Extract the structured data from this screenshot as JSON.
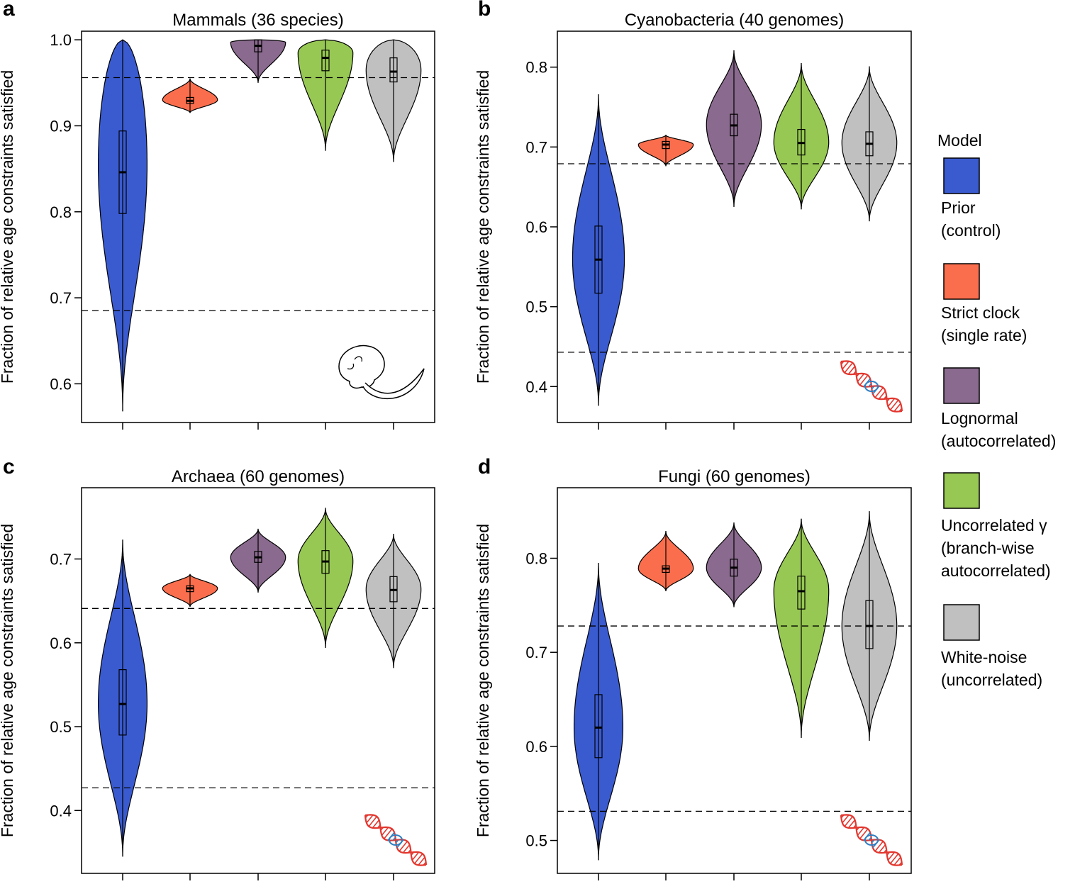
{
  "figure": {
    "y_axis_label": "Fraction of relative age constraints satisfied",
    "legend_title": "Model"
  },
  "legend": [
    {
      "line1": "Prior",
      "line2": "(control)",
      "color": "#3a5bd0"
    },
    {
      "line1": "Strict clock",
      "line2": "(single rate)",
      "color": "#fb6e4d"
    },
    {
      "line1": "Lognormal",
      "line2": "(autocorrelated)",
      "color": "#8a6a8e"
    },
    {
      "line1": "Uncorrelated γ",
      "line2": "(branch-wise",
      "line3": "autocorrelated)",
      "color": "#97c853"
    },
    {
      "line1": "White-noise",
      "line2": "(uncorrelated)",
      "color": "#c0c0c0"
    }
  ],
  "chart_data": [
    {
      "type": "violin",
      "panel": "a",
      "title": "Mammals (36 species)",
      "ylabel": "Fraction of relative age constraints satisfied",
      "ylim": [
        0.555,
        1.01
      ],
      "yticks": [
        0.6,
        0.7,
        0.8,
        0.9,
        1.0
      ],
      "ytick_labels": [
        "0.6",
        "0.7",
        "0.8",
        "0.9",
        "1.0"
      ],
      "hlines": [
        0.956,
        0.685
      ],
      "inset_icon": "skull-icon",
      "series": [
        {
          "name": "Prior (control)",
          "min": 0.568,
          "q1": 0.798,
          "median": 0.846,
          "q3": 0.894,
          "max": 1.0,
          "mode": 0.855,
          "width": 0.8
        },
        {
          "name": "Strict clock (single rate)",
          "min": 0.915,
          "q1": 0.926,
          "median": 0.929,
          "q3": 0.933,
          "max": 0.955,
          "mode": 0.93,
          "width": 0.9
        },
        {
          "name": "Lognormal (autocorrelated)",
          "min": 0.95,
          "q1": 0.986,
          "median": 0.993,
          "q3": 1.0,
          "max": 1.0,
          "mode": 0.997,
          "width": 0.9
        },
        {
          "name": "Uncorrelated γ (branch-wise autocorrelated)",
          "min": 0.871,
          "q1": 0.964,
          "median": 0.979,
          "q3": 0.988,
          "max": 1.0,
          "mode": 0.985,
          "width": 0.9
        },
        {
          "name": "White-noise (uncorrelated)",
          "min": 0.858,
          "q1": 0.951,
          "median": 0.963,
          "q3": 0.979,
          "max": 1.0,
          "mode": 0.965,
          "width": 0.9
        }
      ]
    },
    {
      "type": "violin",
      "panel": "b",
      "title": "Cyanobacteria (40 genomes)",
      "ylabel": "Fraction of relative age constraints satisfied",
      "ylim": [
        0.355,
        0.845
      ],
      "yticks": [
        0.4,
        0.5,
        0.6,
        0.7,
        0.8
      ],
      "ytick_labels": [
        "0.4",
        "0.5",
        "0.6",
        "0.7",
        "0.8"
      ],
      "hlines": [
        0.679,
        0.443
      ],
      "inset_icon": "dna-icon",
      "series": [
        {
          "name": "Prior (control)",
          "min": 0.376,
          "q1": 0.517,
          "median": 0.559,
          "q3": 0.601,
          "max": 0.766,
          "mode": 0.56,
          "width": 0.85
        },
        {
          "name": "Strict clock (single rate)",
          "min": 0.676,
          "q1": 0.698,
          "median": 0.703,
          "q3": 0.707,
          "max": 0.715,
          "mode": 0.703,
          "width": 0.9
        },
        {
          "name": "Lognormal (autocorrelated)",
          "min": 0.625,
          "q1": 0.714,
          "median": 0.727,
          "q3": 0.741,
          "max": 0.821,
          "mode": 0.728,
          "width": 0.9
        },
        {
          "name": "Uncorrelated γ (branch-wise autocorrelated)",
          "min": 0.622,
          "q1": 0.69,
          "median": 0.705,
          "q3": 0.722,
          "max": 0.805,
          "mode": 0.706,
          "width": 0.9
        },
        {
          "name": "White-noise (uncorrelated)",
          "min": 0.607,
          "q1": 0.689,
          "median": 0.704,
          "q3": 0.719,
          "max": 0.801,
          "mode": 0.705,
          "width": 0.9
        }
      ]
    },
    {
      "type": "violin",
      "panel": "c",
      "title": "Archaea (60 genomes)",
      "ylabel": "Fraction of relative age constraints satisfied",
      "ylim": [
        0.325,
        0.785
      ],
      "yticks": [
        0.4,
        0.5,
        0.6,
        0.7
      ],
      "ytick_labels": [
        "0.4",
        "0.5",
        "0.6",
        "0.7"
      ],
      "hlines": [
        0.641,
        0.427
      ],
      "inset_icon": "dna-icon",
      "series": [
        {
          "name": "Prior (control)",
          "min": 0.345,
          "q1": 0.49,
          "median": 0.527,
          "q3": 0.568,
          "max": 0.723,
          "mode": 0.528,
          "width": 0.8
        },
        {
          "name": "Strict clock (single rate)",
          "min": 0.643,
          "q1": 0.661,
          "median": 0.665,
          "q3": 0.668,
          "max": 0.682,
          "mode": 0.665,
          "width": 0.9
        },
        {
          "name": "Lognormal (autocorrelated)",
          "min": 0.66,
          "q1": 0.696,
          "median": 0.702,
          "q3": 0.709,
          "max": 0.736,
          "mode": 0.702,
          "width": 0.9
        },
        {
          "name": "Uncorrelated γ (branch-wise autocorrelated)",
          "min": 0.594,
          "q1": 0.683,
          "median": 0.697,
          "q3": 0.71,
          "max": 0.761,
          "mode": 0.698,
          "width": 0.9
        },
        {
          "name": "White-noise (uncorrelated)",
          "min": 0.57,
          "q1": 0.649,
          "median": 0.663,
          "q3": 0.679,
          "max": 0.73,
          "mode": 0.664,
          "width": 0.9
        }
      ]
    },
    {
      "type": "violin",
      "panel": "d",
      "title": "Fungi (60 genomes)",
      "ylabel": "Fraction of relative age constraints satisfied",
      "ylim": [
        0.465,
        0.875
      ],
      "yticks": [
        0.5,
        0.6,
        0.7,
        0.8
      ],
      "ytick_labels": [
        "0.5",
        "0.6",
        "0.7",
        "0.8"
      ],
      "hlines": [
        0.728,
        0.531
      ],
      "inset_icon": "dna-icon",
      "series": [
        {
          "name": "Prior (control)",
          "min": 0.479,
          "q1": 0.588,
          "median": 0.62,
          "q3": 0.655,
          "max": 0.795,
          "mode": 0.62,
          "width": 0.8
        },
        {
          "name": "Strict clock (single rate)",
          "min": 0.765,
          "q1": 0.785,
          "median": 0.789,
          "q3": 0.792,
          "max": 0.829,
          "mode": 0.789,
          "width": 0.9
        },
        {
          "name": "Lognormal (autocorrelated)",
          "min": 0.748,
          "q1": 0.781,
          "median": 0.79,
          "q3": 0.799,
          "max": 0.838,
          "mode": 0.79,
          "width": 0.9
        },
        {
          "name": "Uncorrelated γ (branch-wise autocorrelated)",
          "min": 0.609,
          "q1": 0.746,
          "median": 0.765,
          "q3": 0.781,
          "max": 0.842,
          "mode": 0.766,
          "width": 0.9
        },
        {
          "name": "White-noise (uncorrelated)",
          "min": 0.606,
          "q1": 0.704,
          "median": 0.728,
          "q3": 0.755,
          "max": 0.85,
          "mode": 0.728,
          "width": 0.9
        }
      ]
    }
  ]
}
